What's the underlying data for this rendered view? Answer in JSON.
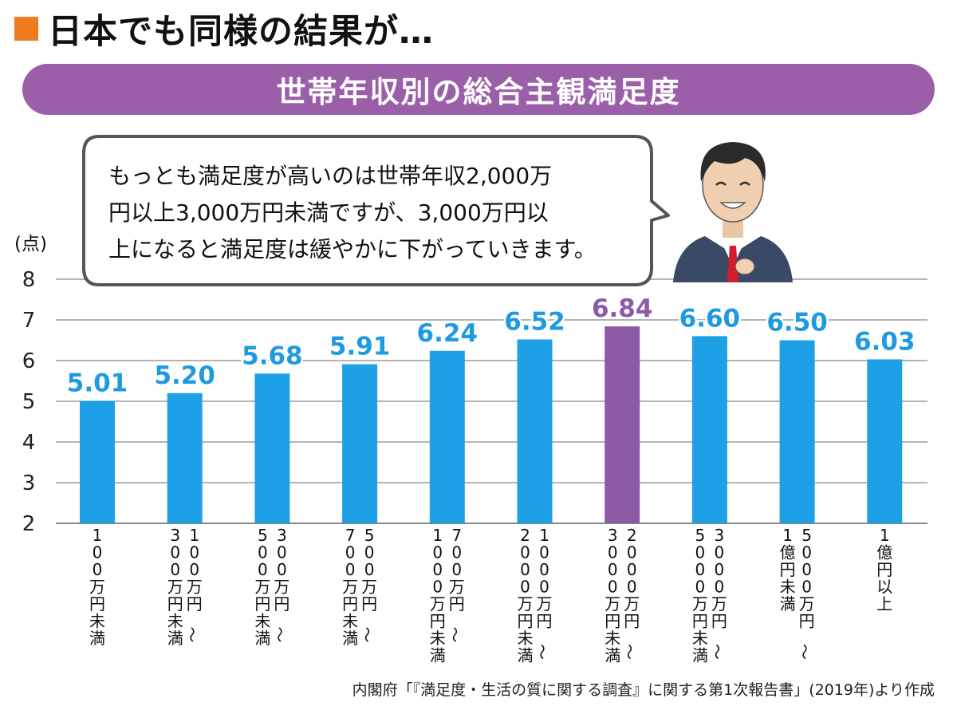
{
  "heading": {
    "text": "日本でも同様の結果が…"
  },
  "banner": {
    "title": "世帯年収別の総合主観満足度"
  },
  "bubble": {
    "lines": [
      "もっとも満足度が高いのは世帯年収2,000万",
      "円以上3,000万円未満ですが、3,000万円以",
      "上になると満足度は緩やかに下がっていきます。"
    ]
  },
  "colors": {
    "accent": "#f07a1e",
    "banner": "#9b5ea8",
    "bar": "#1ea0e6",
    "highlight": "#8c5aa6",
    "label": "#1e9be0"
  },
  "chart_data": {
    "type": "bar",
    "ylabel": "(点)",
    "ylim": [
      2,
      8
    ],
    "yticks": [
      "2",
      "3",
      "4",
      "5",
      "6",
      "7",
      "8"
    ],
    "grid": true,
    "highlight_index": 6,
    "categories": [
      "100万円未満",
      "100万円〜300万円未満",
      "300万円〜500万円未満",
      "500万円〜700万円未満",
      "700万円〜1000万円未満",
      "1000万円〜2000万円未満",
      "2000万円〜3000万円未満",
      "3000万円〜5000万円未満",
      "5000万円〜1億円未満",
      "1億円以上"
    ],
    "category_columns": [
      [
        "100万円未満"
      ],
      [
        "100万円〜",
        "300万円未満"
      ],
      [
        "300万円〜",
        "500万円未満"
      ],
      [
        "500万円〜",
        "700万円未満"
      ],
      [
        "700万円〜",
        "1000万円未満"
      ],
      [
        "1000万円〜",
        "2000万円未満"
      ],
      [
        "2000万円〜",
        "3000万円未満"
      ],
      [
        "3000万円〜",
        "5000万円未満"
      ],
      [
        "5000万円〜",
        "1億円未満"
      ],
      [
        "1億円以上"
      ]
    ],
    "values": [
      5.01,
      5.2,
      5.68,
      5.91,
      6.24,
      6.52,
      6.84,
      6.6,
      6.5,
      6.03
    ],
    "value_labels": [
      "5.01",
      "5.20",
      "5.68",
      "5.91",
      "6.24",
      "6.52",
      "6.84",
      "6.60",
      "6.50",
      "6.03"
    ]
  },
  "source": {
    "text": "内閣府「『満足度・生活の質に関する調査』に関する第1次報告書」(2019年)より作成"
  }
}
